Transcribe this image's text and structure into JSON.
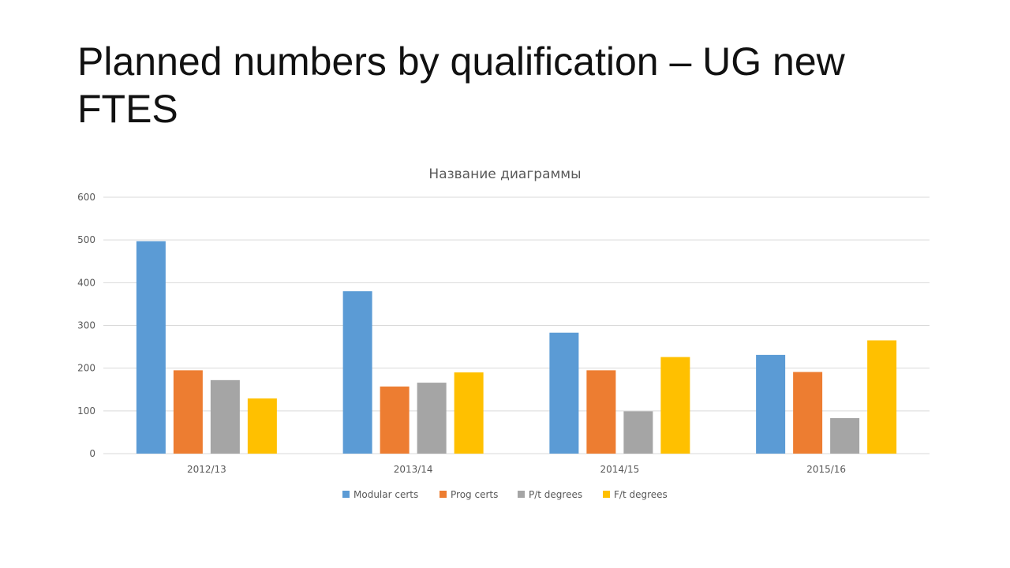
{
  "slide": {
    "title": "Planned numbers by qualification – UG new FTES"
  },
  "chart_data": {
    "type": "bar",
    "title": "Название диаграммы",
    "categories": [
      "2012/13",
      "2013/14",
      "2014/15",
      "2015/16"
    ],
    "series": [
      {
        "name": "Modular certs",
        "color": "#5b9bd5",
        "values": [
          497,
          380,
          283,
          231
        ]
      },
      {
        "name": "Prog certs",
        "color": "#ed7d31",
        "values": [
          195,
          157,
          195,
          191
        ]
      },
      {
        "name": "P/t degrees",
        "color": "#a5a5a5",
        "values": [
          172,
          166,
          99,
          83
        ]
      },
      {
        "name": "F/t degrees",
        "color": "#ffc000",
        "values": [
          129,
          190,
          226,
          265
        ]
      }
    ],
    "ylim": [
      0,
      600
    ],
    "yticks": [
      0,
      100,
      200,
      300,
      400,
      500,
      600
    ],
    "xlabel": "",
    "ylabel": "",
    "grid": true,
    "legend_position": "bottom"
  }
}
